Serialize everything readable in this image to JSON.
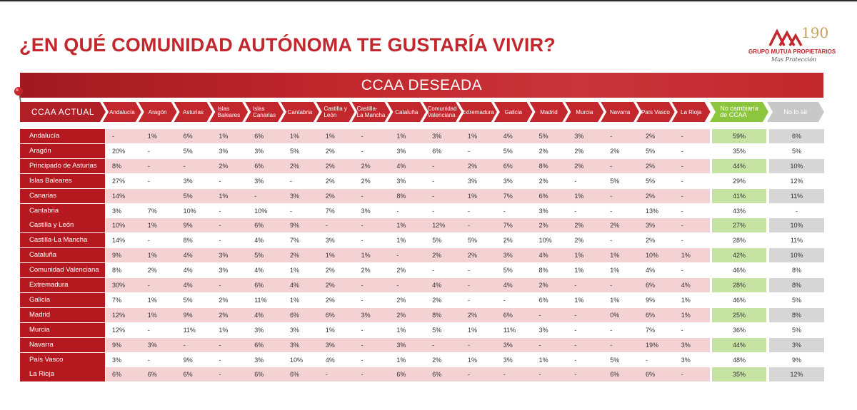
{
  "title": "¿EN QUÉ COMUNIDAD AUTÓNOMA TE GUSTARÍA VIVIR?",
  "logo": {
    "anniversary": "190",
    "brand": "GRUPO MUTUA PROPIETARIOS",
    "signature": "Mas Protección"
  },
  "banner_label": "CCAA DESEADA",
  "row_header_label": "CCAA ACTUAL",
  "colors": {
    "accent": "#c1272d",
    "band": "#f4d2d4",
    "green": "#8cc63f",
    "gray": "#c8c8c8"
  },
  "chart_data": {
    "type": "table",
    "title": "¿EN QUÉ COMUNIDAD AUTÓNOMA TE GUSTARÍA VIVIR?",
    "columns": [
      "Andalucía",
      "Aragón",
      "Asturias",
      "Islas Baleares",
      "Islas Canarias",
      "Cantabria",
      "Castilla y León",
      "Castilla-La Mancha",
      "Cataluña",
      "Comunidad Valenciana",
      "Extremadura",
      "Galicia",
      "Madrid",
      "Murcia",
      "Navarra",
      "País Vasco",
      "La Rioja",
      "No cambiaría de CCAA",
      "No lo sé"
    ],
    "rows": [
      {
        "name": "Andalucía",
        "values": [
          "-",
          "1%",
          "6%",
          "1%",
          "6%",
          "1%",
          "1%",
          "-",
          "1%",
          "3%",
          "1%",
          "4%",
          "5%",
          "3%",
          "-",
          "2%",
          "-",
          "59%",
          "6%"
        ]
      },
      {
        "name": "Aragón",
        "values": [
          "20%",
          "-",
          "5%",
          "3%",
          "3%",
          "5%",
          "2%",
          "-",
          "3%",
          "6%",
          "-",
          "5%",
          "2%",
          "2%",
          "2%",
          "5%",
          "-",
          "35%",
          "5%"
        ]
      },
      {
        "name": "Principado de Asturias",
        "values": [
          "8%",
          "-",
          "-",
          "2%",
          "6%",
          "2%",
          "2%",
          "2%",
          "4%",
          "-",
          "2%",
          "6%",
          "8%",
          "2%",
          "-",
          "2%",
          "-",
          "44%",
          "10%"
        ]
      },
      {
        "name": "Islas Baleares",
        "values": [
          "27%",
          "-",
          "3%",
          "-",
          "3%",
          "-",
          "2%",
          "2%",
          "3%",
          "-",
          "3%",
          "3%",
          "2%",
          "-",
          "5%",
          "5%",
          "-",
          "29%",
          "12%"
        ]
      },
      {
        "name": "Canarias",
        "values": [
          "14%",
          "",
          "5%",
          "1%",
          "-",
          "3%",
          "2%",
          "-",
          "8%",
          "-",
          "1%",
          "7%",
          "6%",
          "1%",
          "-",
          "2%",
          "-",
          "41%",
          "11%"
        ]
      },
      {
        "name": "Cantabria",
        "values": [
          "3%",
          "7%",
          "10%",
          "-",
          "10%",
          "-",
          "7%",
          "3%",
          "-",
          "-",
          "-",
          "-",
          "3%",
          "-",
          "-",
          "13%",
          "-",
          "43%",
          "-"
        ]
      },
      {
        "name": "Castilla y León",
        "values": [
          "10%",
          "1%",
          "9%",
          "-",
          "6%",
          "9%",
          "-",
          "-",
          "1%",
          "12%",
          "-",
          "7%",
          "2%",
          "2%",
          "2%",
          "3%",
          "-",
          "27%",
          "10%"
        ]
      },
      {
        "name": "Castilla-La Mancha",
        "values": [
          "14%",
          "-",
          "8%",
          "-",
          "4%",
          "7%",
          "3%",
          "-",
          "1%",
          "5%",
          "5%",
          "2%",
          "10%",
          "2%",
          "-",
          "2%",
          "-",
          "28%",
          "11%"
        ]
      },
      {
        "name": "Cataluña",
        "values": [
          "9%",
          "1%",
          "4%",
          "3%",
          "5%",
          "2%",
          "1%",
          "1%",
          "-",
          "2%",
          "2%",
          "3%",
          "4%",
          "1%",
          "1%",
          "10%",
          "1%",
          "42%",
          "10%"
        ]
      },
      {
        "name": "Comunidad Valenciana",
        "values": [
          "8%",
          "2%",
          "4%",
          "3%",
          "4%",
          "1%",
          "2%",
          "2%",
          "2%",
          "-",
          "-",
          "5%",
          "8%",
          "1%",
          "1%",
          "4%",
          "-",
          "46%",
          "8%"
        ]
      },
      {
        "name": "Extremadura",
        "values": [
          "30%",
          "-",
          "4%",
          "-",
          "6%",
          "4%",
          "2%",
          "-",
          "-",
          "4%",
          "-",
          "4%",
          "2%",
          "-",
          "-",
          "6%",
          "4%",
          "28%",
          "8%"
        ]
      },
      {
        "name": "Galicia",
        "values": [
          "7%",
          "1%",
          "5%",
          "2%",
          "11%",
          "1%",
          "2%",
          "-",
          "2%",
          "2%",
          "-",
          "-",
          "6%",
          "1%",
          "1%",
          "9%",
          "1%",
          "46%",
          "5%"
        ]
      },
      {
        "name": "Madrid",
        "values": [
          "12%",
          "1%",
          "9%",
          "2%",
          "4%",
          "6%",
          "6%",
          "3%",
          "2%",
          "8%",
          "2%",
          "6%",
          "-",
          "-",
          "0%",
          "6%",
          "1%",
          "25%",
          "8%"
        ]
      },
      {
        "name": "Murcia",
        "values": [
          "12%",
          "-",
          "11%",
          "1%",
          "3%",
          "3%",
          "1%",
          "-",
          "1%",
          "5%",
          "1%",
          "11%",
          "3%",
          "-",
          "-",
          "7%",
          "-",
          "36%",
          "5%"
        ]
      },
      {
        "name": "Navarra",
        "values": [
          "9%",
          "3%",
          "-",
          "-",
          "6%",
          "3%",
          "3%",
          "-",
          "3%",
          "-",
          "-",
          "3%",
          "-",
          "-",
          "-",
          "19%",
          "3%",
          "44%",
          "3%"
        ]
      },
      {
        "name": "País Vasco",
        "values": [
          "3%",
          "-",
          "9%",
          "-",
          "3%",
          "10%",
          "4%",
          "-",
          "1%",
          "2%",
          "1%",
          "3%",
          "1%",
          "-",
          "5%",
          "-",
          "3%",
          "48%",
          "9%"
        ]
      },
      {
        "name": "La Rioja",
        "values": [
          "6%",
          "6%",
          "6%",
          "-",
          "6%",
          "6%",
          "-",
          "-",
          "6%",
          "6%",
          "-",
          "-",
          "-",
          "-",
          "6%",
          "6%",
          "-",
          "35%",
          "12%"
        ]
      }
    ]
  }
}
